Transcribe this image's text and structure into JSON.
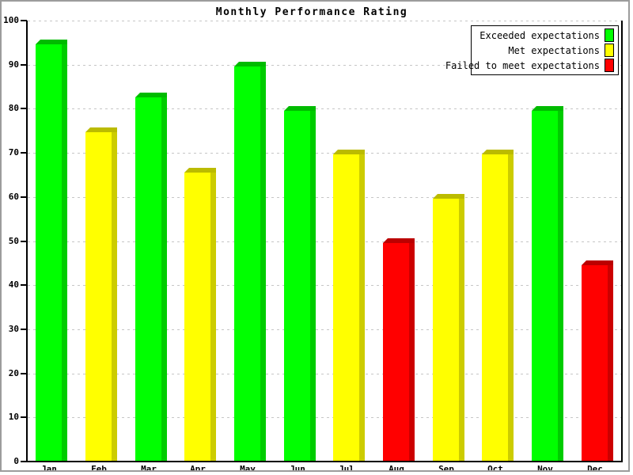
{
  "window": {
    "background_color": "#ffffff",
    "border_color": "#9c9c9c"
  },
  "chart_data": {
    "type": "bar",
    "title": "Monthly Performance Rating",
    "categories": [
      "Jan",
      "Feb",
      "Mar",
      "Apr",
      "May",
      "Jun",
      "Jul",
      "Aug",
      "Sep",
      "Oct",
      "Nov",
      "Dec"
    ],
    "values": [
      95.5,
      75.5,
      83.5,
      66.5,
      90.5,
      80.5,
      70.5,
      50.5,
      60.5,
      70.5,
      80.5,
      45.5
    ],
    "bar_ratings": [
      "exceeded",
      "met",
      "exceeded",
      "met",
      "exceeded",
      "exceeded",
      "met",
      "failed",
      "met",
      "met",
      "exceeded",
      "failed"
    ],
    "ylim": [
      0,
      100
    ],
    "yticks": [
      0,
      10,
      20,
      30,
      40,
      50,
      60,
      70,
      80,
      90,
      100
    ],
    "grid": "horizontal-dashed",
    "axis_color": "#000000",
    "grid_color": "#c6c6c6",
    "bar_style": "pseudo-3d",
    "rating_colors": {
      "exceeded": {
        "face": "#00ff00",
        "cap": "#00bb00",
        "side": "#00cc00"
      },
      "met": {
        "face": "#ffff00",
        "cap": "#bbbb00",
        "side": "#cccc00"
      },
      "failed": {
        "face": "#ff0000",
        "cap": "#bb0000",
        "side": "#cc0000"
      }
    },
    "legend": {
      "position": "top-right",
      "entries": [
        {
          "label": "Exceeded expectations",
          "color": "#00ff00",
          "rating": "exceeded"
        },
        {
          "label": "Met expectations",
          "color": "#ffff00",
          "rating": "met"
        },
        {
          "label": "Failed to meet expectations",
          "color": "#ff0000",
          "rating": "failed"
        }
      ]
    }
  }
}
